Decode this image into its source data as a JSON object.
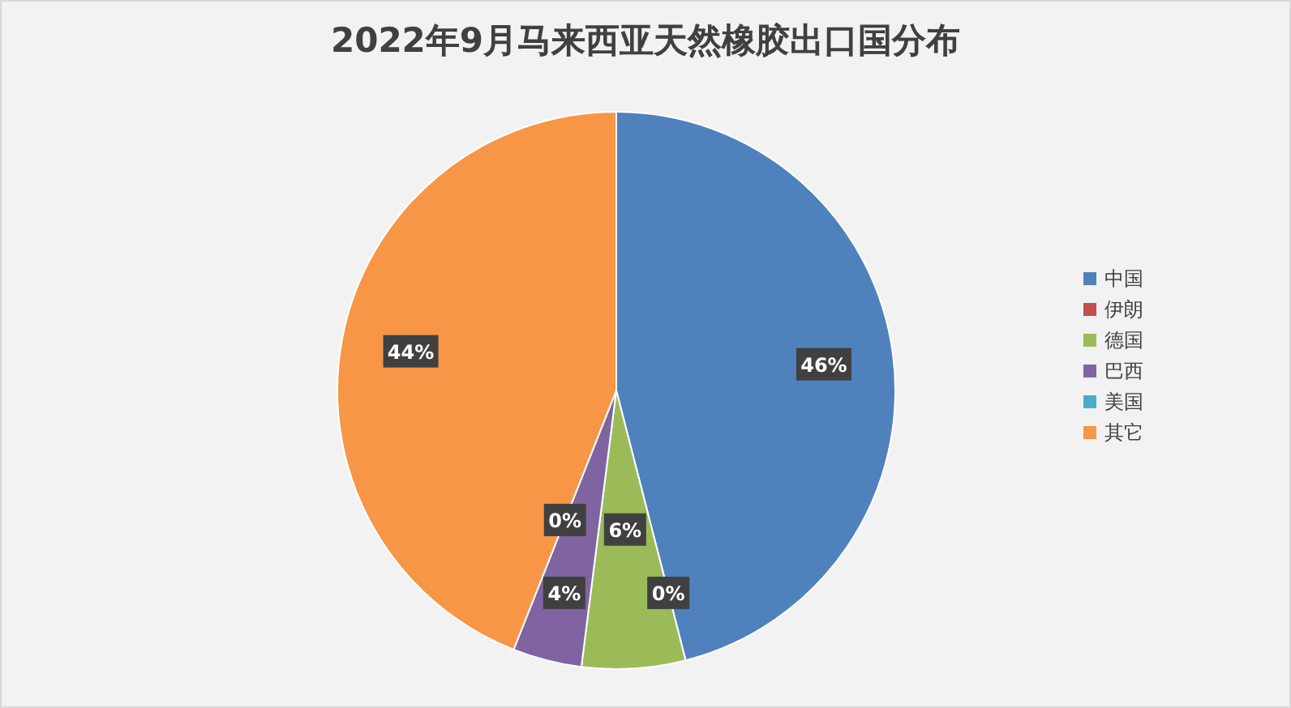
{
  "chart_data": {
    "type": "pie",
    "title": "2022年9月马来西亚天然橡胶出口国分布",
    "categories": [
      "中国",
      "伊朗",
      "德国",
      "巴西",
      "美国",
      "其它"
    ],
    "values": [
      46,
      0,
      6,
      4,
      0,
      44
    ],
    "colors": [
      "#4f81bd",
      "#c0504d",
      "#9bbb59",
      "#8064a2",
      "#4bacc6",
      "#f79646"
    ],
    "value_labels": [
      "46%",
      "0%",
      "6%",
      "4%",
      "0%",
      "44%"
    ],
    "legend": "right"
  }
}
